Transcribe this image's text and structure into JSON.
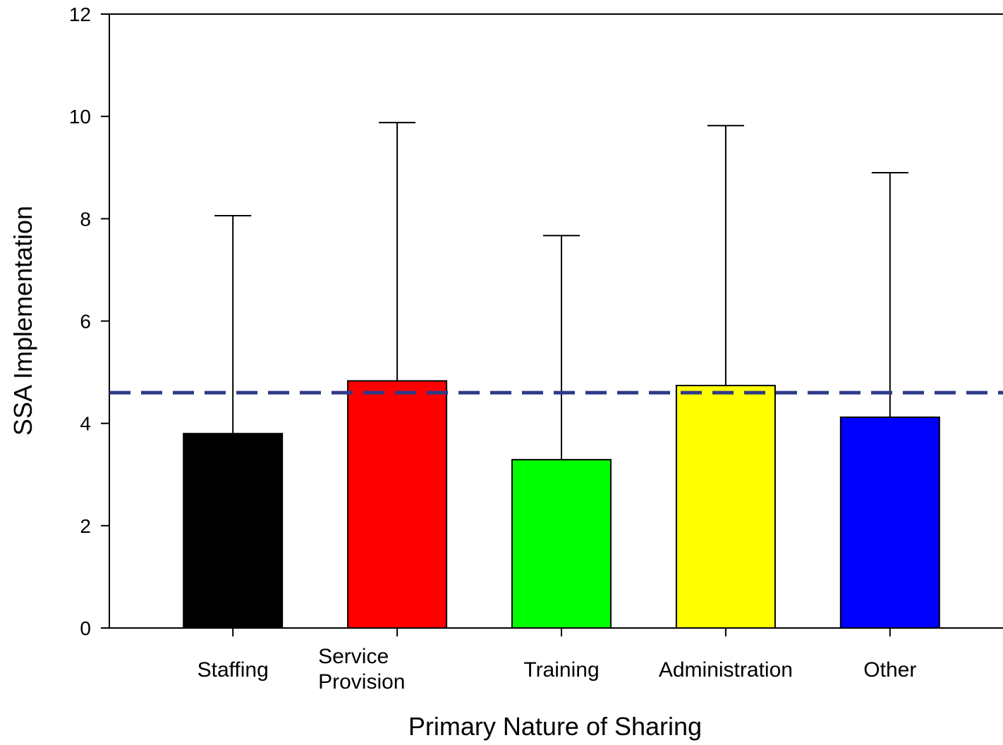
{
  "chart_data": {
    "type": "bar",
    "xlabel": "Primary Nature of Sharing",
    "ylabel": "SSA Implementation",
    "ylim": [
      0,
      12
    ],
    "yticks": [
      0,
      2,
      4,
      6,
      8,
      10,
      12
    ],
    "categories": [
      {
        "lines": [
          "Staffing"
        ]
      },
      {
        "lines": [
          "Service",
          "Provision"
        ]
      },
      {
        "lines": [
          "Training"
        ]
      },
      {
        "lines": [
          "Administration"
        ]
      },
      {
        "lines": [
          "Other"
        ]
      }
    ],
    "values": [
      3.8,
      4.83,
      3.29,
      4.74,
      4.12
    ],
    "error_upper": [
      8.06,
      9.88,
      7.67,
      9.82,
      8.9
    ],
    "colors": [
      "#000000",
      "#ff0000",
      "#00ff00",
      "#ffff00",
      "#0000ff"
    ],
    "reference_line": {
      "value": 4.6,
      "color": "#2e3a87",
      "style": "dashed"
    },
    "grid": false,
    "legend": "none"
  }
}
